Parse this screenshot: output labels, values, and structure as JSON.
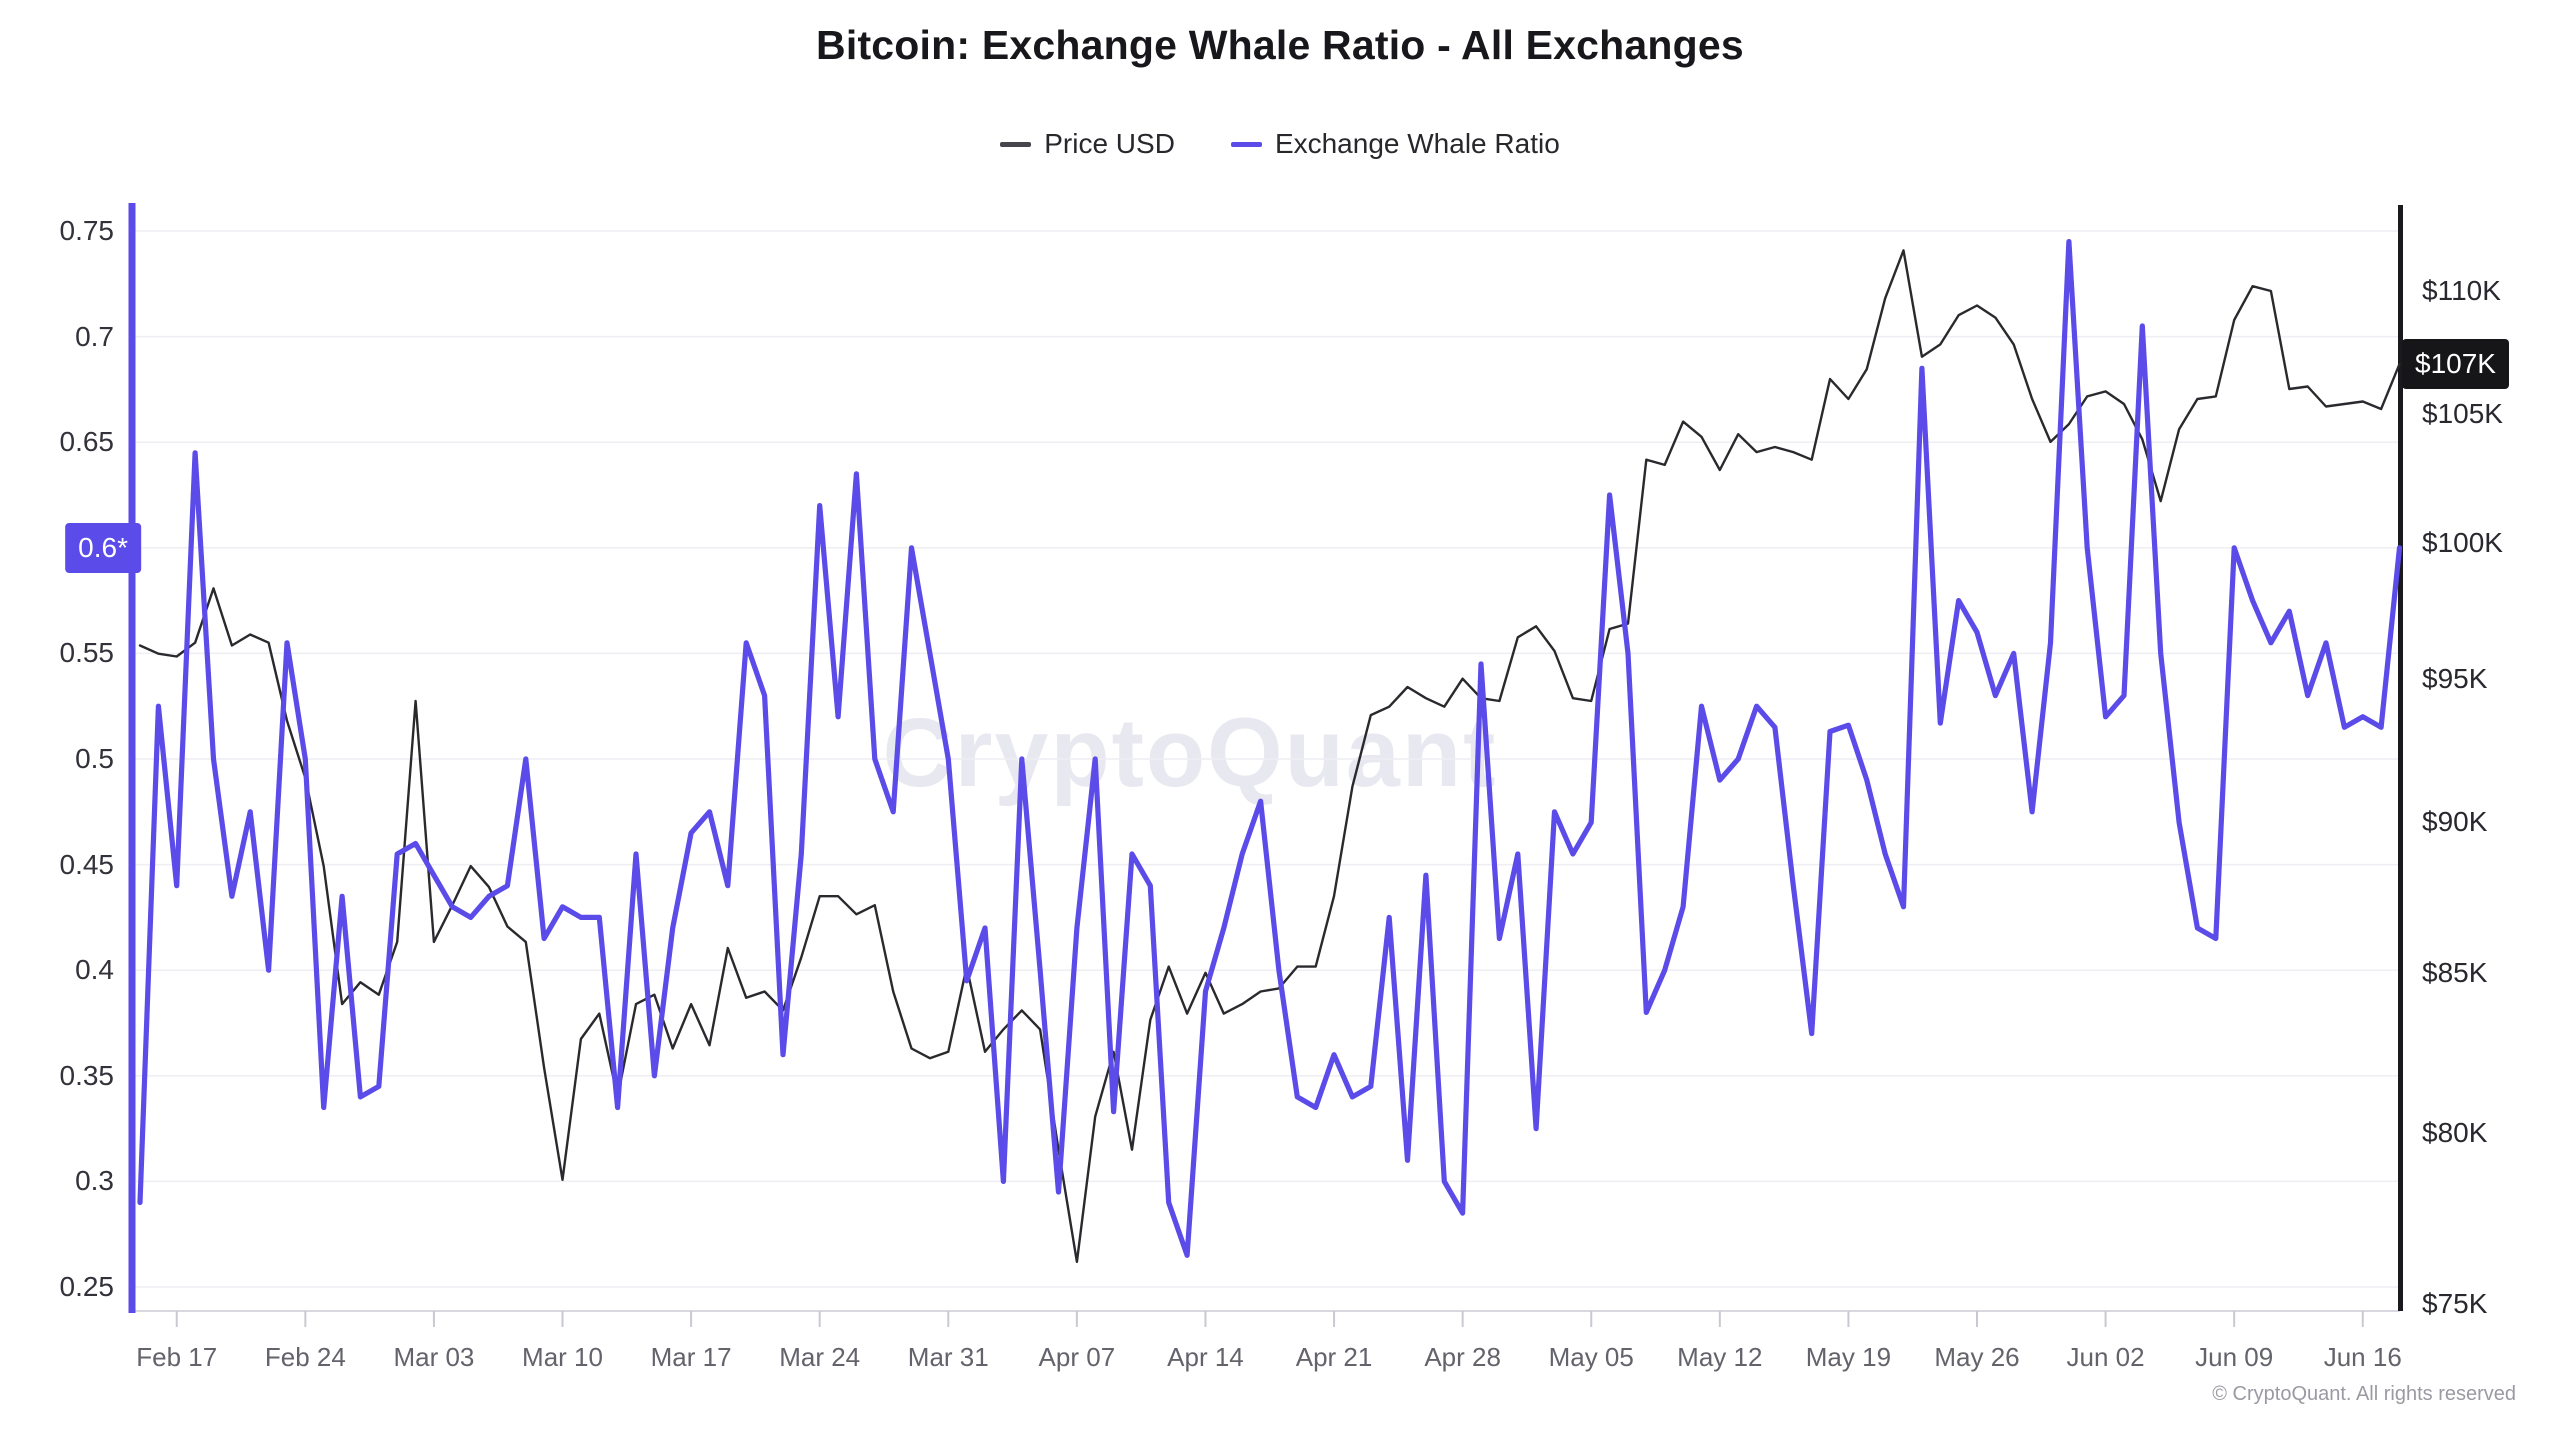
{
  "header": {
    "title": "Bitcoin: Exchange Whale Ratio - All Exchanges",
    "legend": [
      {
        "label": "Price USD",
        "color": "#45454b"
      },
      {
        "label": "Exchange Whale Ratio",
        "color": "#5b4be8"
      }
    ]
  },
  "watermark": {
    "text": "CryptoQuant"
  },
  "footer": {
    "copyright": "© CryptoQuant. All rights reserved"
  },
  "left_axis": {
    "axis_color": "#5b4be8",
    "badge": {
      "text": "0.6*",
      "value": 0.6,
      "bg": "#5b4be8"
    },
    "tick_labels": [
      "0.75",
      "0.7",
      "0.65",
      "0.55",
      "0.5",
      "0.45",
      "0.4",
      "0.35",
      "0.3",
      "0.25"
    ],
    "tick_values": [
      0.75,
      0.7,
      0.65,
      0.55,
      0.5,
      0.45,
      0.4,
      0.35,
      0.3,
      0.25
    ],
    "grid_values": [
      0.75,
      0.7,
      0.65,
      0.6,
      0.55,
      0.5,
      0.45,
      0.4,
      0.35,
      0.3,
      0.25
    ]
  },
  "right_axis": {
    "axis_color": "#1a1a1e",
    "scale": "log",
    "badge": {
      "text": "$107K",
      "value": 107,
      "bg": "#161618"
    },
    "tick_labels": [
      "$110K",
      "$105K",
      "$100K",
      "$95K",
      "$90K",
      "$85K",
      "$80K",
      "$75K"
    ],
    "tick_values": [
      110,
      105,
      100,
      95,
      90,
      85,
      80,
      75
    ]
  },
  "x_axis": {
    "tick_labels": [
      "Feb 17",
      "Feb 24",
      "Mar 03",
      "Mar 10",
      "Mar 17",
      "Mar 24",
      "Mar 31",
      "Apr 07",
      "Apr 14",
      "Apr 21",
      "Apr 28",
      "May 05",
      "May 12",
      "May 19",
      "May 26",
      "Jun 02",
      "Jun 09",
      "Jun 16"
    ],
    "tick_day_offsets": [
      2,
      9,
      16,
      23,
      30,
      37,
      44,
      51,
      58,
      65,
      72,
      79,
      86,
      93,
      100,
      107,
      114,
      121
    ]
  },
  "chart_data": {
    "type": "line",
    "title": "Bitcoin: Exchange Whale Ratio - All Exchanges",
    "grid": true,
    "legend_position": "top",
    "left_ylim": [
      0.25,
      0.75
    ],
    "right_ylim": [
      75,
      110
    ],
    "right_unit": "USD thousands",
    "right_scale": "log",
    "x": [
      "Feb 15",
      "Feb 16",
      "Feb 17",
      "Feb 18",
      "Feb 19",
      "Feb 20",
      "Feb 21",
      "Feb 22",
      "Feb 23",
      "Feb 24",
      "Feb 25",
      "Feb 26",
      "Feb 27",
      "Feb 28",
      "Mar 01",
      "Mar 02",
      "Mar 03",
      "Mar 04",
      "Mar 05",
      "Mar 06",
      "Mar 07",
      "Mar 08",
      "Mar 09",
      "Mar 10",
      "Mar 11",
      "Mar 12",
      "Mar 13",
      "Mar 14",
      "Mar 15",
      "Mar 16",
      "Mar 17",
      "Mar 18",
      "Mar 19",
      "Mar 20",
      "Mar 21",
      "Mar 22",
      "Mar 23",
      "Mar 24",
      "Mar 25",
      "Mar 26",
      "Mar 27",
      "Mar 28",
      "Mar 29",
      "Mar 30",
      "Mar 31",
      "Apr 01",
      "Apr 02",
      "Apr 03",
      "Apr 04",
      "Apr 05",
      "Apr 06",
      "Apr 07",
      "Apr 08",
      "Apr 09",
      "Apr 10",
      "Apr 11",
      "Apr 12",
      "Apr 13",
      "Apr 14",
      "Apr 15",
      "Apr 16",
      "Apr 17",
      "Apr 18",
      "Apr 19",
      "Apr 20",
      "Apr 21",
      "Apr 22",
      "Apr 23",
      "Apr 24",
      "Apr 25",
      "Apr 26",
      "Apr 27",
      "Apr 28",
      "Apr 29",
      "Apr 30",
      "May 01",
      "May 02",
      "May 03",
      "May 04",
      "May 05",
      "May 06",
      "May 07",
      "May 08",
      "May 09",
      "May 10",
      "May 11",
      "May 12",
      "May 13",
      "May 14",
      "May 15",
      "May 16",
      "May 17",
      "May 18",
      "May 19",
      "May 20",
      "May 21",
      "May 22",
      "May 23",
      "May 24",
      "May 25",
      "May 26",
      "May 27",
      "May 28",
      "May 29",
      "May 30",
      "May 31",
      "Jun 01",
      "Jun 02",
      "Jun 03",
      "Jun 04",
      "Jun 05",
      "Jun 06",
      "Jun 07",
      "Jun 08",
      "Jun 09",
      "Jun 10",
      "Jun 11",
      "Jun 12",
      "Jun 13",
      "Jun 14",
      "Jun 15",
      "Jun 16",
      "Jun 17",
      "Jun 18"
    ],
    "series": [
      {
        "name": "Price USD",
        "axis": "right",
        "color": "#2a2a2e",
        "width": 2.4,
        "values": [
          96.2,
          95.9,
          95.8,
          96.3,
          98.3,
          96.2,
          96.6,
          96.3,
          93.5,
          91.5,
          88.5,
          84.0,
          84.7,
          84.3,
          86.0,
          94.2,
          86.0,
          87.2,
          88.5,
          87.8,
          86.5,
          86.0,
          82.0,
          78.6,
          82.9,
          83.7,
          81.1,
          84.0,
          84.3,
          82.6,
          84.0,
          82.7,
          85.8,
          84.2,
          84.4,
          83.8,
          85.5,
          87.5,
          87.5,
          86.9,
          87.2,
          84.4,
          82.6,
          82.3,
          82.5,
          85.2,
          82.5,
          83.2,
          83.8,
          83.2,
          79.5,
          76.2,
          80.5,
          82.5,
          79.5,
          83.5,
          85.2,
          83.7,
          85.0,
          83.7,
          84.0,
          84.4,
          84.5,
          85.2,
          85.2,
          87.5,
          91.2,
          93.7,
          94.0,
          94.7,
          94.3,
          94.0,
          95.0,
          94.3,
          94.2,
          96.5,
          96.9,
          96.0,
          94.3,
          94.2,
          96.8,
          97.0,
          103.2,
          103.0,
          104.7,
          104.1,
          102.8,
          104.2,
          103.5,
          103.7,
          103.5,
          103.2,
          106.4,
          105.6,
          106.8,
          109.7,
          111.7,
          107.3,
          107.8,
          109.0,
          109.4,
          108.9,
          107.8,
          105.6,
          103.9,
          104.6,
          105.7,
          105.9,
          105.4,
          104.0,
          101.6,
          104.4,
          105.6,
          105.7,
          108.8,
          110.2,
          110.0,
          106.0,
          106.1,
          105.3,
          105.4,
          105.5,
          105.2,
          107.0
        ]
      },
      {
        "name": "Exchange Whale Ratio",
        "axis": "left",
        "color": "#5b4be8",
        "width": 5.2,
        "values": [
          0.29,
          0.525,
          0.44,
          0.645,
          0.5,
          0.435,
          0.475,
          0.4,
          0.555,
          0.5,
          0.335,
          0.435,
          0.34,
          0.345,
          0.455,
          0.46,
          0.445,
          0.43,
          0.425,
          0.435,
          0.44,
          0.5,
          0.415,
          0.43,
          0.425,
          0.425,
          0.335,
          0.455,
          0.35,
          0.42,
          0.465,
          0.475,
          0.44,
          0.555,
          0.53,
          0.36,
          0.455,
          0.62,
          0.52,
          0.635,
          0.5,
          0.475,
          0.6,
          0.55,
          0.5,
          0.395,
          0.42,
          0.3,
          0.5,
          0.4,
          0.295,
          0.42,
          0.5,
          0.333,
          0.455,
          0.44,
          0.29,
          0.265,
          0.39,
          0.42,
          0.455,
          0.48,
          0.4,
          0.34,
          0.335,
          0.36,
          0.34,
          0.345,
          0.425,
          0.31,
          0.445,
          0.3,
          0.285,
          0.545,
          0.415,
          0.455,
          0.325,
          0.475,
          0.455,
          0.47,
          0.625,
          0.55,
          0.38,
          0.4,
          0.43,
          0.525,
          0.49,
          0.5,
          0.525,
          0.515,
          0.44,
          0.37,
          0.513,
          0.516,
          0.49,
          0.455,
          0.43,
          0.685,
          0.517,
          0.575,
          0.56,
          0.53,
          0.55,
          0.475,
          0.555,
          0.745,
          0.6,
          0.52,
          0.53,
          0.705,
          0.55,
          0.47,
          0.42,
          0.415,
          0.6,
          0.575,
          0.555,
          0.57,
          0.53,
          0.555,
          0.515,
          0.52,
          0.515,
          0.6
        ]
      }
    ]
  }
}
